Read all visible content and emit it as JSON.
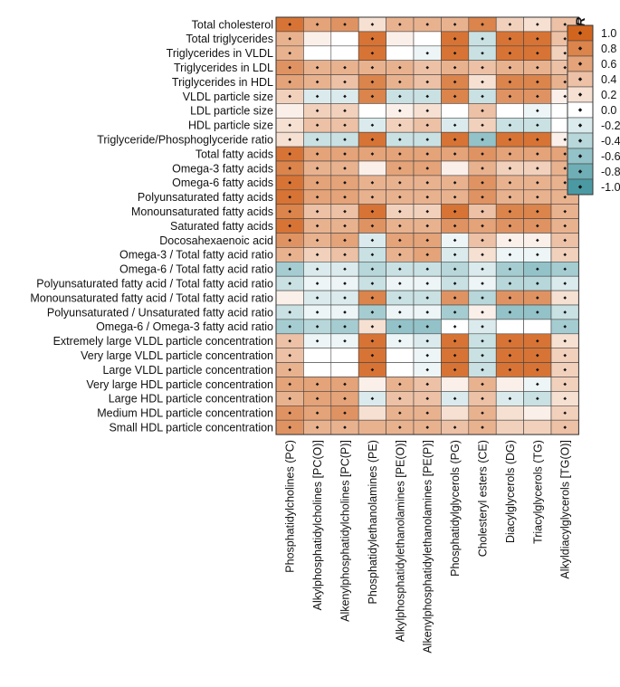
{
  "chart_data": {
    "type": "heatmap",
    "rows": [
      "Total cholesterol",
      "Total triglycerides",
      "Triglycerides in VLDL",
      "Triglycerides in LDL",
      "Triglycerides in HDL",
      "VLDL particle size",
      "LDL particle size",
      "HDL particle size",
      "Triglyceride/Phosphoglyceride ratio",
      "Total fatty acids",
      "Omega-3 fatty acids",
      "Omega-6 fatty acids",
      "Polyunsaturated fatty acids",
      "Monounsaturated fatty acids",
      "Saturated fatty acids",
      "Docosahexaenoic acid",
      "Omega-3 / Total fatty acid ratio",
      "Omega-6 / Total fatty acid ratio",
      "Polyunsaturated fatty acid / Total fatty acid ratio",
      "Monounsaturated fatty acid / Total fatty acid ratio",
      "Polyunsaturated / Unsaturated fatty acid ratio",
      "Omega-6 / Omega-3 fatty acid ratio",
      "Extremely large VLDL particle concentration",
      "Very large VLDL particle concentration",
      "Large VLDL particle concentration",
      "Very large HDL particle concentration",
      "Large HDL particle concentration",
      "Medium HDL particle concentration",
      "Small HDL particle concentration"
    ],
    "columns": [
      "Phosphatidylcholines (PC)",
      "Alkylphosphatidylcholines [PC(O)]",
      "Alkenylphosphatidylcholines [PC(P)]",
      "Phosphatidylethanolamines (PE)",
      "Alkylphosphatidylethanolamines [PE(O)]",
      "Alkenylphosphatidylethanolamines [PE(P)]",
      "Phosphatidylglycerols (PG)",
      "Cholesteryl esters (CE)",
      "Diacylglycerols (DG)",
      "Triacylglycerols (TG)",
      "Alkyldiacylglycerols [TG(O)]"
    ],
    "values": [
      [
        0.9,
        0.6,
        0.7,
        0.2,
        0.5,
        0.5,
        0.5,
        0.8,
        0.3,
        0.2,
        0.4
      ],
      [
        0.5,
        0.1,
        0.0,
        0.9,
        0.1,
        0.0,
        0.9,
        -0.3,
        0.9,
        0.9,
        0.4
      ],
      [
        0.5,
        0.0,
        0.0,
        0.9,
        0.0,
        -0.1,
        0.9,
        -0.3,
        0.9,
        0.9,
        0.3
      ],
      [
        0.7,
        0.5,
        0.5,
        0.5,
        0.5,
        0.4,
        0.5,
        0.4,
        0.5,
        0.5,
        0.4
      ],
      [
        0.6,
        0.5,
        0.4,
        0.8,
        0.5,
        0.4,
        0.8,
        0.2,
        0.8,
        0.8,
        0.5
      ],
      [
        0.3,
        -0.2,
        -0.2,
        0.8,
        -0.3,
        -0.3,
        0.8,
        -0.3,
        0.7,
        0.7,
        0.1
      ],
      [
        0.1,
        0.3,
        0.3,
        0.0,
        0.1,
        0.2,
        0.0,
        0.4,
        0.0,
        -0.1,
        0.0
      ],
      [
        0.2,
        0.4,
        0.4,
        -0.2,
        0.3,
        0.4,
        -0.2,
        0.3,
        -0.3,
        -0.3,
        0.0
      ],
      [
        0.2,
        -0.3,
        -0.3,
        0.9,
        -0.3,
        -0.3,
        0.9,
        -0.6,
        0.9,
        0.9,
        0.1
      ],
      [
        0.9,
        0.6,
        0.6,
        0.6,
        0.6,
        0.6,
        0.6,
        0.7,
        0.6,
        0.6,
        0.6
      ],
      [
        0.8,
        0.5,
        0.5,
        0.1,
        0.6,
        0.6,
        0.1,
        0.5,
        0.3,
        0.3,
        0.5
      ],
      [
        0.9,
        0.6,
        0.6,
        0.5,
        0.5,
        0.5,
        0.5,
        0.7,
        0.5,
        0.5,
        0.5
      ],
      [
        0.9,
        0.6,
        0.6,
        0.5,
        0.5,
        0.5,
        0.5,
        0.7,
        0.5,
        0.5,
        0.5
      ],
      [
        0.8,
        0.4,
        0.4,
        0.9,
        0.3,
        0.3,
        0.9,
        0.4,
        0.8,
        0.8,
        0.5
      ],
      [
        0.9,
        0.5,
        0.5,
        0.7,
        0.5,
        0.5,
        0.7,
        0.6,
        0.7,
        0.7,
        0.5
      ],
      [
        0.7,
        0.5,
        0.6,
        -0.2,
        0.6,
        0.6,
        -0.1,
        0.4,
        0.1,
        0.1,
        0.4
      ],
      [
        0.5,
        0.3,
        0.4,
        -0.3,
        0.5,
        0.6,
        -0.2,
        0.2,
        -0.1,
        -0.1,
        0.3
      ],
      [
        -0.5,
        -0.2,
        -0.2,
        -0.4,
        -0.3,
        -0.3,
        -0.4,
        -0.2,
        -0.5,
        -0.6,
        -0.5
      ],
      [
        -0.3,
        -0.1,
        -0.1,
        -0.3,
        -0.1,
        -0.1,
        -0.3,
        -0.1,
        -0.4,
        -0.4,
        -0.2
      ],
      [
        0.1,
        -0.2,
        -0.2,
        0.8,
        -0.3,
        -0.3,
        0.7,
        -0.4,
        0.7,
        0.7,
        0.2
      ],
      [
        -0.3,
        -0.1,
        -0.1,
        -0.5,
        -0.1,
        -0.1,
        -0.5,
        0.1,
        -0.6,
        -0.6,
        -0.3
      ],
      [
        -0.5,
        -0.4,
        -0.5,
        0.2,
        -0.6,
        -0.6,
        0.0,
        -0.2,
        0.0,
        0.0,
        -0.5
      ],
      [
        0.4,
        -0.1,
        -0.1,
        0.9,
        -0.1,
        -0.2,
        0.9,
        -0.3,
        0.9,
        0.9,
        0.2
      ],
      [
        0.4,
        0.0,
        0.0,
        0.9,
        0.0,
        -0.1,
        0.9,
        -0.3,
        0.9,
        0.9,
        0.3
      ],
      [
        0.5,
        0.0,
        0.0,
        0.9,
        0.0,
        -0.1,
        0.9,
        -0.3,
        0.9,
        0.9,
        0.3
      ],
      [
        0.6,
        0.6,
        0.6,
        0.1,
        0.5,
        0.4,
        0.1,
        0.5,
        0.1,
        -0.1,
        0.3
      ],
      [
        0.5,
        0.6,
        0.6,
        -0.2,
        0.4,
        0.4,
        -0.2,
        0.4,
        -0.2,
        -0.3,
        0.2
      ],
      [
        0.7,
        0.6,
        0.7,
        0.2,
        0.5,
        0.5,
        0.2,
        0.5,
        0.2,
        0.1,
        0.3
      ],
      [
        0.7,
        0.5,
        0.5,
        0.5,
        0.5,
        0.5,
        0.4,
        0.5,
        0.3,
        0.3,
        0.4
      ]
    ],
    "significant": [
      [
        1,
        1,
        1,
        1,
        1,
        1,
        1,
        1,
        1,
        1,
        1
      ],
      [
        1,
        0,
        0,
        1,
        0,
        0,
        1,
        1,
        1,
        1,
        1
      ],
      [
        1,
        0,
        0,
        1,
        0,
        1,
        1,
        1,
        1,
        1,
        1
      ],
      [
        1,
        1,
        1,
        1,
        1,
        1,
        1,
        1,
        1,
        1,
        1
      ],
      [
        1,
        1,
        1,
        1,
        1,
        1,
        1,
        1,
        1,
        1,
        1
      ],
      [
        1,
        1,
        1,
        1,
        1,
        1,
        1,
        1,
        1,
        1,
        1
      ],
      [
        0,
        1,
        1,
        0,
        1,
        1,
        0,
        1,
        0,
        1,
        0
      ],
      [
        1,
        1,
        1,
        1,
        1,
        1,
        1,
        1,
        1,
        1,
        0
      ],
      [
        1,
        1,
        1,
        1,
        1,
        1,
        1,
        1,
        1,
        1,
        1
      ],
      [
        1,
        1,
        1,
        1,
        1,
        1,
        1,
        1,
        1,
        1,
        1
      ],
      [
        1,
        1,
        1,
        0,
        1,
        1,
        0,
        1,
        1,
        1,
        1
      ],
      [
        1,
        1,
        1,
        1,
        1,
        1,
        1,
        1,
        1,
        1,
        1
      ],
      [
        1,
        1,
        1,
        1,
        1,
        1,
        1,
        1,
        1,
        1,
        1
      ],
      [
        1,
        1,
        1,
        1,
        1,
        1,
        1,
        1,
        1,
        1,
        1
      ],
      [
        1,
        1,
        1,
        1,
        1,
        1,
        1,
        1,
        1,
        1,
        1
      ],
      [
        1,
        1,
        1,
        1,
        1,
        1,
        1,
        1,
        1,
        1,
        1
      ],
      [
        1,
        1,
        1,
        1,
        1,
        1,
        1,
        1,
        1,
        1,
        1
      ],
      [
        1,
        1,
        1,
        1,
        1,
        1,
        1,
        1,
        1,
        1,
        1
      ],
      [
        1,
        1,
        1,
        1,
        1,
        1,
        1,
        1,
        1,
        1,
        1
      ],
      [
        0,
        1,
        1,
        1,
        1,
        1,
        1,
        1,
        1,
        1,
        1
      ],
      [
        1,
        1,
        1,
        1,
        1,
        1,
        1,
        1,
        1,
        1,
        1
      ],
      [
        1,
        1,
        1,
        1,
        1,
        1,
        1,
        1,
        0,
        0,
        1
      ],
      [
        1,
        1,
        1,
        1,
        1,
        1,
        1,
        1,
        1,
        1,
        1
      ],
      [
        1,
        0,
        0,
        1,
        0,
        1,
        1,
        1,
        1,
        1,
        1
      ],
      [
        1,
        0,
        0,
        1,
        0,
        1,
        1,
        1,
        1,
        1,
        1
      ],
      [
        1,
        1,
        1,
        0,
        1,
        1,
        0,
        1,
        0,
        1,
        1
      ],
      [
        1,
        1,
        1,
        1,
        1,
        1,
        1,
        1,
        1,
        1,
        1
      ],
      [
        1,
        1,
        1,
        0,
        1,
        1,
        0,
        1,
        0,
        0,
        1
      ],
      [
        1,
        1,
        1,
        0,
        1,
        1,
        1,
        1,
        0,
        0,
        1
      ]
    ],
    "color_scale": {
      "title": "R",
      "range": [
        -1.0,
        1.0
      ],
      "ticks": [
        "1.0",
        "0.8",
        "0.6",
        "0.4",
        "0.2",
        "0.0",
        "-0.2",
        "-0.4",
        "-0.6",
        "-0.8",
        "-1.0"
      ],
      "positive_color": "#d2651e",
      "negative_color": "#4b9aa3",
      "zero_color": "#ffffff"
    },
    "legend": "right"
  }
}
